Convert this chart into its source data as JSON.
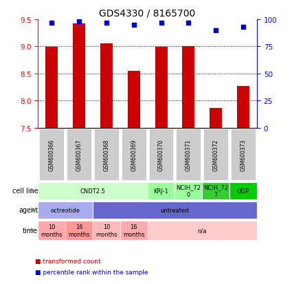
{
  "title": "GDS4330 / 8165700",
  "samples": [
    "GSM600366",
    "GSM600367",
    "GSM600368",
    "GSM600369",
    "GSM600370",
    "GSM600371",
    "GSM600372",
    "GSM600373"
  ],
  "bar_values": [
    8.99,
    9.42,
    9.06,
    8.55,
    8.99,
    9.0,
    7.86,
    8.27
  ],
  "bar_bottom": 7.5,
  "percentile_values": [
    97,
    98,
    97,
    95,
    97,
    97,
    90,
    93
  ],
  "ylim": [
    7.5,
    9.5
  ],
  "ylim_right": [
    0,
    100
  ],
  "yticks_left": [
    7.5,
    8.0,
    8.5,
    9.0,
    9.5
  ],
  "yticks_right": [
    0,
    25,
    50,
    75,
    100
  ],
  "bar_color": "#cc0000",
  "dot_color": "#0000cc",
  "grid_color": "#000000",
  "cell_line_groups": [
    {
      "label": "CNDT2.5",
      "start": 0,
      "end": 4,
      "color": "#ccffcc"
    },
    {
      "label": "KRJ-1",
      "start": 4,
      "end": 5,
      "color": "#99ff99"
    },
    {
      "label": "NCIH_72\n0",
      "start": 5,
      "end": 6,
      "color": "#99ff99"
    },
    {
      "label": "NCIH_72\n7",
      "start": 6,
      "end": 7,
      "color": "#33cc33"
    },
    {
      "label": "QGP",
      "start": 7,
      "end": 8,
      "color": "#00cc00"
    }
  ],
  "agent_groups": [
    {
      "label": "octreotide",
      "start": 0,
      "end": 2,
      "color": "#aaaaee"
    },
    {
      "label": "untreated",
      "start": 2,
      "end": 8,
      "color": "#6666cc"
    }
  ],
  "time_groups": [
    {
      "label": "10\nmonths",
      "start": 0,
      "end": 1,
      "color": "#ffaaaa"
    },
    {
      "label": "16\nmonths",
      "start": 1,
      "end": 2,
      "color": "#ff9999"
    },
    {
      "label": "10\nmonths",
      "start": 2,
      "end": 3,
      "color": "#ffbbbb"
    },
    {
      "label": "16\nmonths",
      "start": 3,
      "end": 4,
      "color": "#ffaaaa"
    },
    {
      "label": "n/a",
      "start": 4,
      "end": 8,
      "color": "#ffcccc"
    }
  ],
  "row_labels": [
    "cell line",
    "agent",
    "time"
  ],
  "legend_items": [
    {
      "label": "transformed count",
      "color": "#cc0000",
      "marker": "s"
    },
    {
      "label": "percentile rank within the sample",
      "color": "#0000cc",
      "marker": "s"
    }
  ]
}
